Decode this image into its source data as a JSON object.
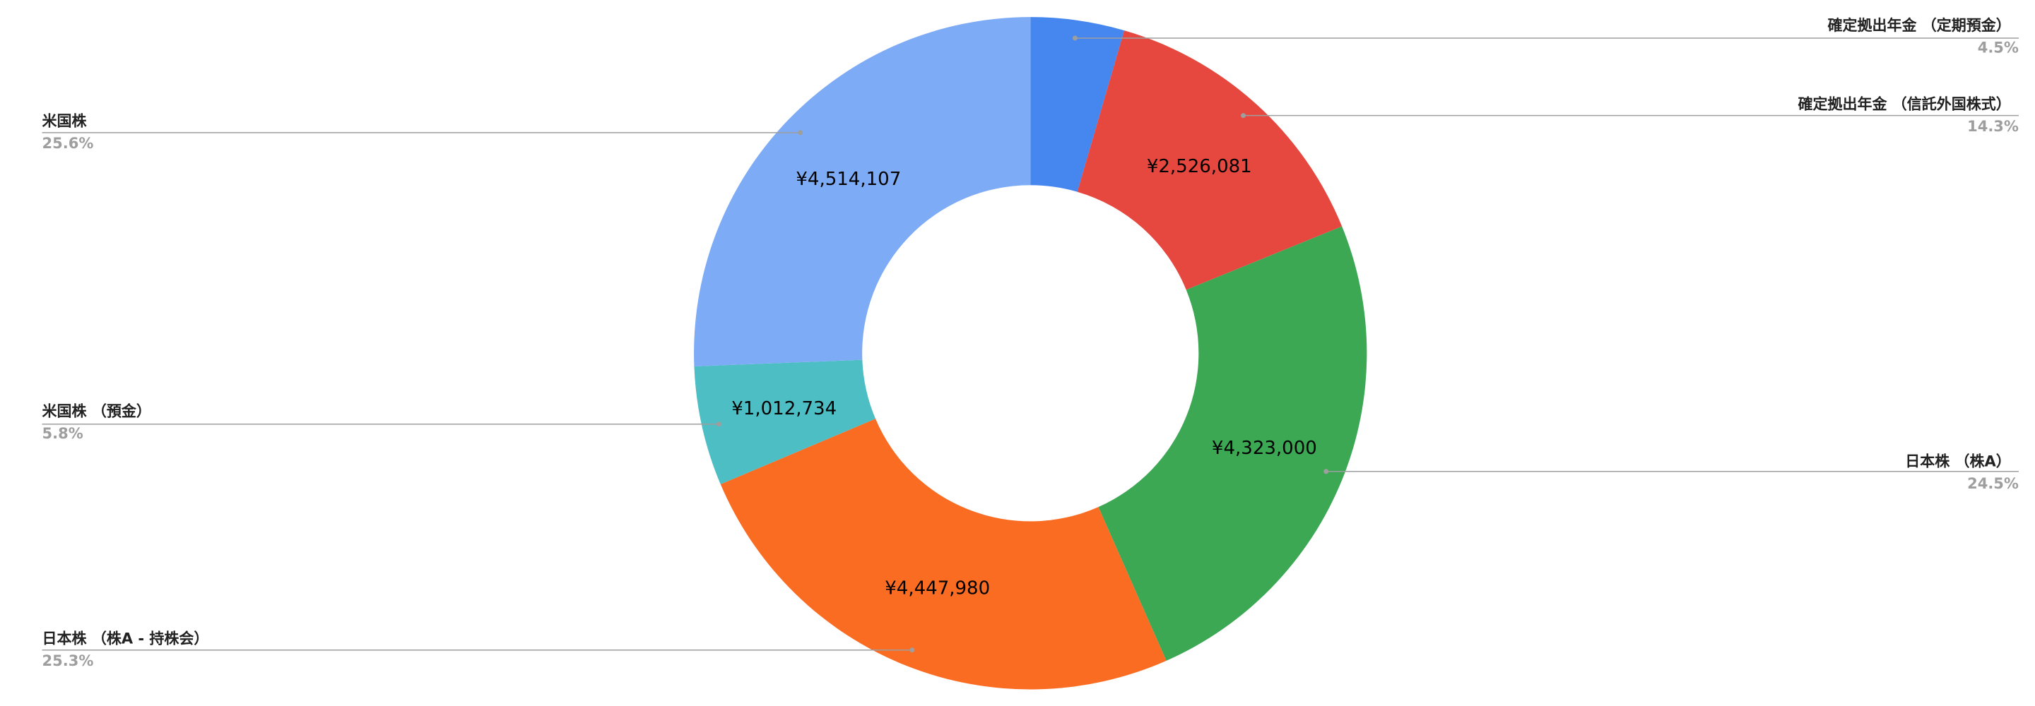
{
  "chart_data": {
    "type": "pie",
    "donut": true,
    "legend": "labeled",
    "categories": [
      "確定拠出年金 （定期預金）",
      "確定拠出年金 （信託外国株式）",
      "日本株 （株A）",
      "日本株 （株A - 持株会）",
      "米国株 （預金）",
      "米国株"
    ],
    "values": [
      793000,
      2526081,
      4323000,
      4447980,
      1012734,
      4514107
    ],
    "value_labels": [
      "",
      "¥2,526,081",
      "¥4,323,000",
      "¥4,447,980",
      "¥1,012,734",
      "¥4,514,107"
    ],
    "percent_labels": [
      "4.5%",
      "14.3%",
      "24.5%",
      "25.3%",
      "5.8%",
      "25.6%"
    ],
    "colors": [
      "#4687ef",
      "#e6473e",
      "#3ca854",
      "#fb6c23",
      "#4cbec4",
      "#7eabf5"
    ]
  }
}
